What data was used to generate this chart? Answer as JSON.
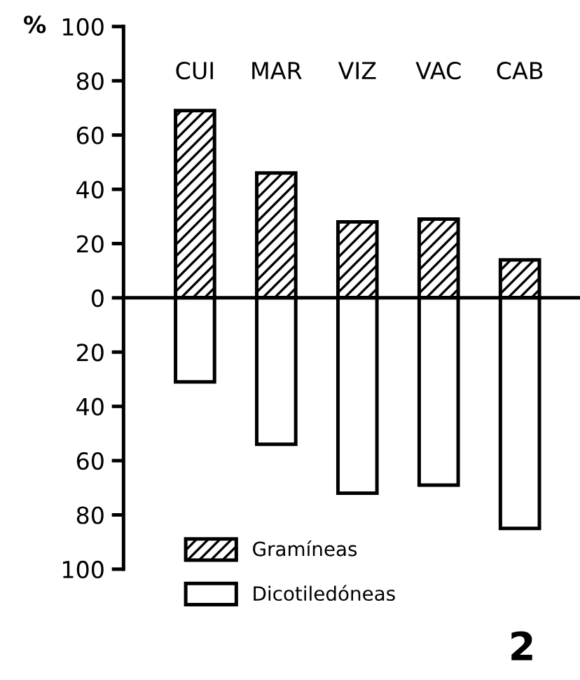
{
  "chart_data": {
    "type": "bar",
    "ylabel": "%",
    "categories": [
      "CUI",
      "MAR",
      "VIZ",
      "VAC",
      "CAB"
    ],
    "series": [
      {
        "name": "Gramíneas",
        "color": "#000000",
        "values": [
          69,
          46,
          28,
          29,
          14
        ]
      },
      {
        "name": "Dicotiledóneas",
        "color": "#ffffff",
        "values": [
          -31,
          -54,
          -72,
          -69,
          -85
        ]
      }
    ],
    "ylim": [
      -100,
      100
    ],
    "yticks": [
      {
        "value": -100,
        "label": "100"
      },
      {
        "value": -80,
        "label": "80"
      },
      {
        "value": -60,
        "label": "60"
      },
      {
        "value": -40,
        "label": "40"
      },
      {
        "value": -20,
        "label": "20"
      },
      0,
      20,
      40,
      60,
      80,
      100
    ],
    "stacked": true,
    "legend": "bottom left",
    "annotations": [
      "2"
    ]
  }
}
